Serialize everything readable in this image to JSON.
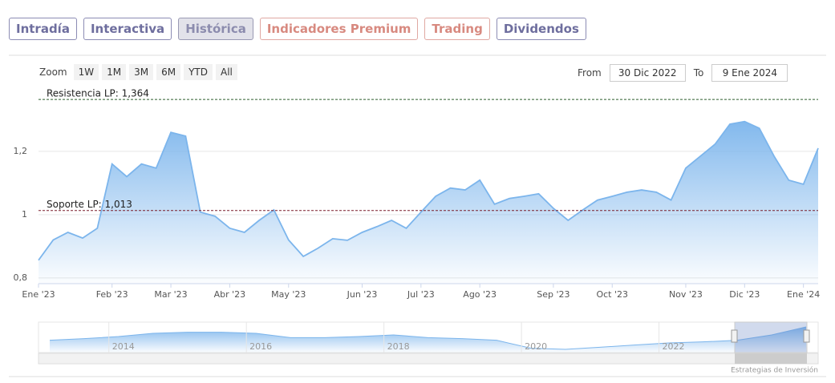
{
  "tabs": [
    "Intradía",
    "Interactiva",
    "Histórica",
    "Indicadores Premium",
    "Trading",
    "Dividendos"
  ],
  "zoom": {
    "label": "Zoom",
    "buttons": [
      "1W",
      "1M",
      "3M",
      "6M",
      "YTD",
      "All"
    ]
  },
  "range": {
    "from_label": "From",
    "from": "30 Dic 2022",
    "to_label": "To",
    "to": "9 Ene 2024"
  },
  "chart_data": {
    "type": "area",
    "categories": [
      "Ene '23",
      null,
      null,
      null,
      null,
      "Feb '23",
      null,
      null,
      null,
      "Mar '23",
      null,
      null,
      null,
      "Abr '23",
      null,
      null,
      null,
      "May '23",
      null,
      null,
      null,
      null,
      "Jun '23",
      null,
      null,
      null,
      "Jul '23",
      null,
      null,
      null,
      "Ago '23",
      null,
      null,
      null,
      null,
      "Sep '23",
      null,
      null,
      null,
      "Oct '23",
      null,
      null,
      null,
      null,
      "Nov '23",
      null,
      null,
      null,
      "Dic '23",
      null,
      null,
      null,
      "Ene '24",
      null
    ],
    "series": [
      {
        "color": "#7cb5ec",
        "values": [
          0.856,
          0.92,
          0.944,
          0.926,
          0.957,
          1.16,
          1.12,
          1.16,
          1.147,
          1.26,
          1.248,
          1.008,
          0.995,
          0.957,
          0.944,
          0.982,
          1.015,
          0.92,
          0.868,
          0.894,
          0.924,
          0.919,
          0.944,
          0.962,
          0.982,
          0.957,
          1.008,
          1.058,
          1.084,
          1.078,
          1.109,
          1.033,
          1.051,
          1.058,
          1.066,
          1.02,
          0.982,
          1.015,
          1.046,
          1.058,
          1.071,
          1.078,
          1.071,
          1.046,
          1.147,
          1.185,
          1.223,
          1.286,
          1.294,
          1.273,
          1.185,
          1.109,
          1.096,
          1.21
        ]
      }
    ],
    "ylim": [
      0.782,
      1.387
    ],
    "yticks": [
      {
        "value": 0.8,
        "label": "0,8"
      },
      1,
      {
        "value": 1.2,
        "label": "1,2"
      }
    ],
    "plot_lines": [
      {
        "value": 1.364,
        "label": "Resistencia LP: 1,364",
        "color": "#2e5e2e"
      },
      {
        "value": 1.013,
        "label": "Soporte LP: 1,013",
        "color": "#7a1f2b"
      }
    ],
    "grid": true,
    "navigator": {
      "categories": [
        null,
        null,
        "2014",
        null,
        null,
        null,
        "2016",
        null,
        null,
        null,
        "2018",
        null,
        null,
        null,
        "2020",
        null,
        null,
        null,
        "2022",
        null,
        null,
        null,
        null
      ],
      "values": [
        0.95,
        0.98,
        1.02,
        1.08,
        1.1,
        1.1,
        1.08,
        1.0,
        1.0,
        1.02,
        1.05,
        1.0,
        0.98,
        0.95,
        0.8,
        0.78,
        0.82,
        0.86,
        0.9,
        0.92,
        0.95,
        1.05,
        1.2
      ]
    },
    "credits": "Estrategias de Inversión"
  }
}
